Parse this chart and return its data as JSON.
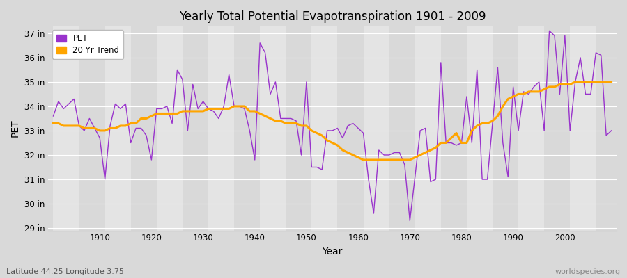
{
  "title": "Yearly Total Potential Evapotranspiration 1901 - 2009",
  "xlabel": "Year",
  "ylabel": "PET",
  "subtitle": "Latitude 44.25 Longitude 3.75",
  "watermark": "worldspecies.org",
  "pet_color": "#9933cc",
  "trend_color": "#ffa500",
  "background_color": "#e0e0e0",
  "plot_bg_color": "#d8d8d8",
  "ylim_min": 29,
  "ylim_max": 37,
  "years": [
    1901,
    1902,
    1903,
    1904,
    1905,
    1906,
    1907,
    1908,
    1909,
    1910,
    1911,
    1912,
    1913,
    1914,
    1915,
    1916,
    1917,
    1918,
    1919,
    1920,
    1921,
    1922,
    1923,
    1924,
    1925,
    1926,
    1927,
    1928,
    1929,
    1930,
    1931,
    1932,
    1933,
    1934,
    1935,
    1936,
    1937,
    1938,
    1939,
    1940,
    1941,
    1942,
    1943,
    1944,
    1945,
    1946,
    1947,
    1948,
    1949,
    1950,
    1951,
    1952,
    1953,
    1954,
    1955,
    1956,
    1957,
    1958,
    1959,
    1960,
    1961,
    1962,
    1963,
    1964,
    1965,
    1966,
    1967,
    1968,
    1969,
    1970,
    1971,
    1972,
    1973,
    1974,
    1975,
    1976,
    1977,
    1978,
    1979,
    1980,
    1981,
    1982,
    1983,
    1984,
    1985,
    1986,
    1987,
    1988,
    1989,
    1990,
    1991,
    1992,
    1993,
    1994,
    1995,
    1996,
    1997,
    1998,
    1999,
    2000,
    2001,
    2002,
    2003,
    2004,
    2005,
    2006,
    2007,
    2008,
    2009
  ],
  "pet": [
    33.6,
    34.2,
    33.9,
    34.1,
    34.3,
    33.2,
    33.0,
    33.5,
    33.1,
    32.7,
    31.0,
    33.2,
    34.1,
    33.9,
    34.1,
    32.5,
    33.1,
    33.1,
    32.8,
    31.8,
    33.9,
    33.9,
    34.0,
    33.3,
    35.5,
    35.1,
    33.0,
    34.9,
    33.9,
    34.2,
    33.9,
    33.8,
    33.5,
    34.0,
    35.3,
    34.0,
    34.0,
    33.9,
    33.0,
    31.8,
    36.6,
    36.2,
    34.5,
    35.0,
    33.5,
    33.5,
    33.5,
    33.4,
    32.0,
    35.0,
    31.5,
    31.5,
    31.4,
    33.0,
    33.0,
    33.1,
    32.7,
    33.2,
    33.3,
    33.1,
    32.9,
    31.0,
    29.6,
    32.2,
    32.0,
    32.0,
    32.1,
    32.1,
    31.6,
    29.3,
    31.1,
    33.0,
    33.1,
    30.9,
    31.0,
    35.8,
    32.5,
    32.5,
    32.4,
    32.5,
    34.4,
    32.5,
    35.5,
    31.0,
    31.0,
    33.3,
    35.6,
    32.5,
    31.1,
    34.8,
    33.0,
    34.6,
    34.5,
    34.8,
    35.0,
    33.0,
    37.1,
    36.9,
    34.5,
    36.9,
    33.0,
    35.0,
    36.0,
    34.5,
    34.5,
    36.2,
    36.1,
    32.8,
    33.0
  ],
  "trend": [
    33.3,
    33.3,
    33.2,
    33.2,
    33.2,
    33.2,
    33.1,
    33.1,
    33.1,
    33.0,
    33.0,
    33.1,
    33.1,
    33.2,
    33.2,
    33.3,
    33.3,
    33.5,
    33.5,
    33.6,
    33.7,
    33.7,
    33.7,
    33.7,
    33.7,
    33.8,
    33.8,
    33.8,
    33.8,
    33.8,
    33.9,
    33.9,
    33.9,
    33.9,
    33.9,
    34.0,
    34.0,
    34.0,
    33.8,
    33.8,
    33.7,
    33.6,
    33.5,
    33.4,
    33.4,
    33.3,
    33.3,
    33.3,
    33.2,
    33.2,
    33.0,
    32.9,
    32.8,
    32.6,
    32.5,
    32.4,
    32.2,
    32.1,
    32.0,
    31.9,
    31.8,
    31.8,
    31.8,
    31.8,
    31.8,
    31.8,
    31.8,
    31.8,
    31.8,
    31.8,
    31.9,
    32.0,
    32.1,
    32.2,
    32.3,
    32.5,
    32.5,
    32.7,
    32.9,
    32.5,
    32.5,
    33.0,
    33.2,
    33.3,
    33.3,
    33.4,
    33.6,
    34.0,
    34.3,
    34.4,
    34.5,
    34.5,
    34.6,
    34.6,
    34.6,
    34.7,
    34.8,
    34.8,
    34.9,
    34.9,
    34.9,
    35.0,
    35.0,
    35.0,
    35.0,
    35.0,
    35.0,
    35.0,
    35.0
  ]
}
